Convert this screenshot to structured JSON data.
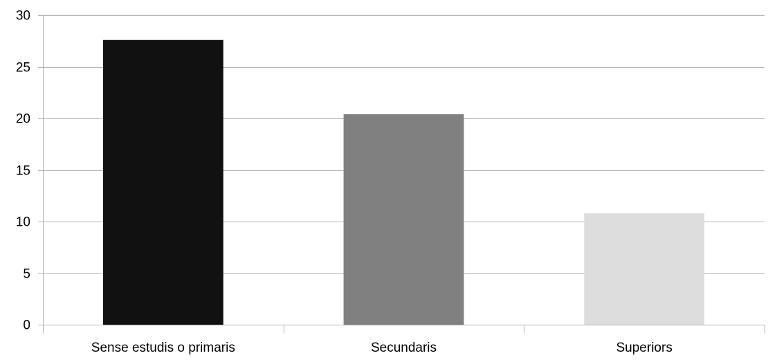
{
  "chart_data": {
    "type": "bar",
    "categories": [
      "Sense estudis o primaris",
      "Secundaris",
      "Superiors"
    ],
    "values": [
      27.6,
      20.4,
      10.8
    ],
    "colors": [
      "#111111",
      "#808080",
      "#dddddd"
    ],
    "ylim": [
      0,
      30
    ],
    "yticks": [
      "0",
      "5",
      "10",
      "15",
      "20",
      "25",
      "30"
    ],
    "grid": true,
    "legend": "none",
    "title": "",
    "xlabel": "",
    "ylabel": ""
  }
}
